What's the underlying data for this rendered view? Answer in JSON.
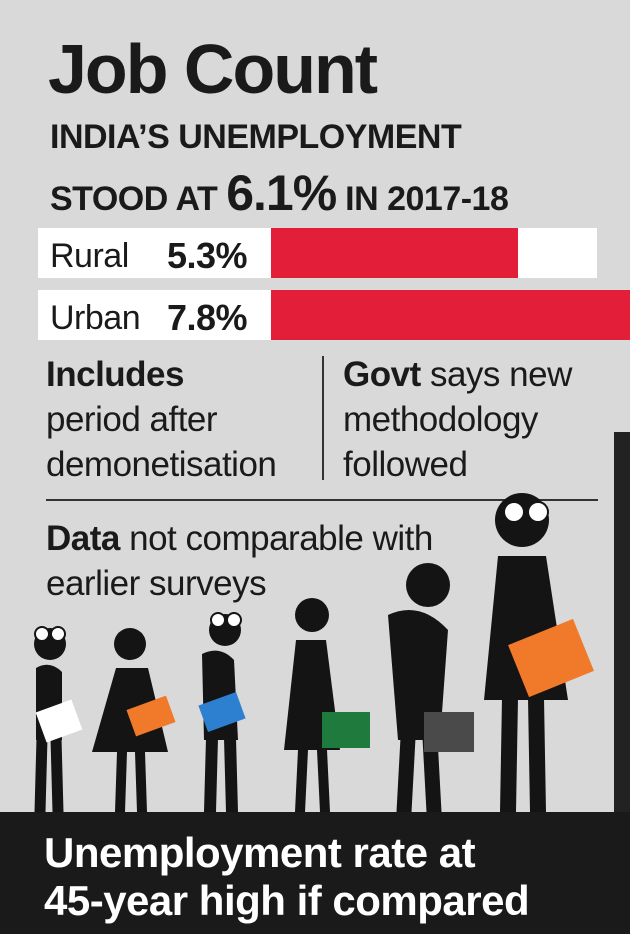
{
  "title": "Job Count",
  "subtitle_line1": "INDIA’S UNEMPLOYMENT",
  "subtitle_line2_pre": "STOOD AT",
  "subtitle_value": "6.1%",
  "subtitle_line2_post": "IN 2017-18",
  "chart_data": {
    "type": "bar",
    "categories": [
      "Rural",
      "Urban"
    ],
    "values": [
      5.3,
      7.8
    ],
    "value_labels": [
      "5.3%",
      "7.8%"
    ],
    "xlim": [
      0,
      7.8
    ],
    "bar_color": "#e31e38"
  },
  "notes": {
    "left_bold": "Includes",
    "left_rest_1": "period after",
    "left_rest_2": "demonetisation",
    "right_bold": "Govt",
    "right_rest_1": "says new",
    "right_rest_2": "methodology",
    "right_rest_3": "followed",
    "bottom_bold": "Data",
    "bottom_rest_1": "not comparable with",
    "bottom_rest_2": "earlier surveys"
  },
  "illustration": "queue-of-job-seekers-icon",
  "footer_line1": "Unemployment rate at",
  "footer_line2": "45-year high if compared"
}
